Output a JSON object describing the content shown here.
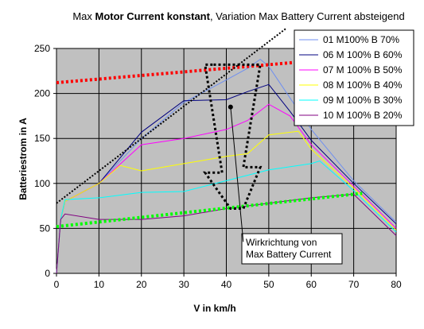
{
  "chart_data": {
    "type": "line",
    "title_parts": [
      {
        "text": "Max ",
        "bold": false
      },
      {
        "text": "Motor Current konstant",
        "bold": true
      },
      {
        "text": ", Variation Max Battery Current absteigend",
        "bold": false
      }
    ],
    "xlabel": "V in km/h",
    "ylabel": "Batteriestrom in A",
    "xlim": [
      0,
      80
    ],
    "ylim": [
      0,
      250
    ],
    "xticks": [
      0,
      10,
      20,
      30,
      40,
      50,
      60,
      70,
      80
    ],
    "yticks": [
      0,
      50,
      100,
      150,
      200,
      250
    ],
    "grid": true,
    "plot_background": "#c0c0c0",
    "legend_placement": "top-right",
    "series": [
      {
        "name": "01 M100% B 70%",
        "color": "#6f8ff0",
        "x": [
          0,
          1,
          2,
          10,
          20,
          30,
          40,
          45,
          48,
          50,
          55,
          60,
          70,
          80
        ],
        "y": [
          0,
          60,
          80,
          100,
          150,
          190,
          215,
          228,
          238,
          230,
          195,
          160,
          103,
          57
        ]
      },
      {
        "name": "06 M 100% B 60%",
        "color": "#000080",
        "x": [
          0,
          1,
          2,
          10,
          20,
          30,
          40,
          45,
          50,
          55,
          60,
          70,
          80
        ],
        "y": [
          0,
          60,
          80,
          100,
          157,
          192,
          193,
          202,
          210,
          180,
          148,
          100,
          55
        ]
      },
      {
        "name": "07 M 100% B 50%",
        "color": "#ff00ff",
        "x": [
          0,
          1,
          2,
          10,
          20,
          30,
          40,
          45,
          50,
          55,
          60,
          70,
          80
        ],
        "y": [
          0,
          60,
          80,
          100,
          143,
          150,
          160,
          170,
          188,
          175,
          143,
          97,
          50
        ]
      },
      {
        "name": "08 M 100% B 40%",
        "color": "#ffff00",
        "x": [
          0,
          1,
          2,
          10,
          15,
          20,
          30,
          40,
          45,
          50,
          57,
          60,
          70,
          80
        ],
        "y": [
          0,
          60,
          80,
          100,
          120,
          114,
          122,
          130,
          133,
          154,
          158,
          138,
          95,
          48
        ]
      },
      {
        "name": "09 M 100% B 30%",
        "color": "#00ffff",
        "x": [
          0,
          1,
          2,
          10,
          20,
          30,
          40,
          50,
          60,
          62,
          70,
          80
        ],
        "y": [
          0,
          60,
          82,
          84,
          90,
          91,
          103,
          115,
          122,
          125,
          92,
          46
        ]
      },
      {
        "name": "10 M 100% B 20%",
        "color": "#800080",
        "x": [
          0,
          1,
          2,
          10,
          20,
          30,
          40,
          50,
          60,
          70,
          80
        ],
        "y": [
          0,
          60,
          66,
          60,
          60,
          64,
          72,
          78,
          84,
          88,
          42
        ]
      }
    ],
    "annotations": [
      {
        "kind": "text_box",
        "lines": [
          "Wirkrichtung von",
          "Max Battery Current"
        ]
      },
      {
        "kind": "dotted_line",
        "color": "#ff0000",
        "x": [
          0,
          70
        ],
        "y": [
          212,
          240
        ]
      },
      {
        "kind": "dotted_line",
        "color": "#00ff00",
        "x": [
          0,
          72
        ],
        "y": [
          52,
          89
        ]
      },
      {
        "kind": "dotted_line",
        "color": "#000000",
        "x": [
          0,
          54
        ],
        "y": [
          78,
          272
        ]
      },
      {
        "kind": "dotted_arrow",
        "color": "#000000",
        "x": [
          37,
          48,
          44,
          48,
          44,
          41,
          35,
          39,
          35,
          37
        ],
        "y": [
          232,
          232,
          118,
          118,
          72,
          72,
          112,
          112,
          232,
          232
        ]
      },
      {
        "kind": "marker_line",
        "color": "#000000",
        "x": [
          41,
          44
        ],
        "y": [
          185,
          35
        ]
      }
    ]
  }
}
